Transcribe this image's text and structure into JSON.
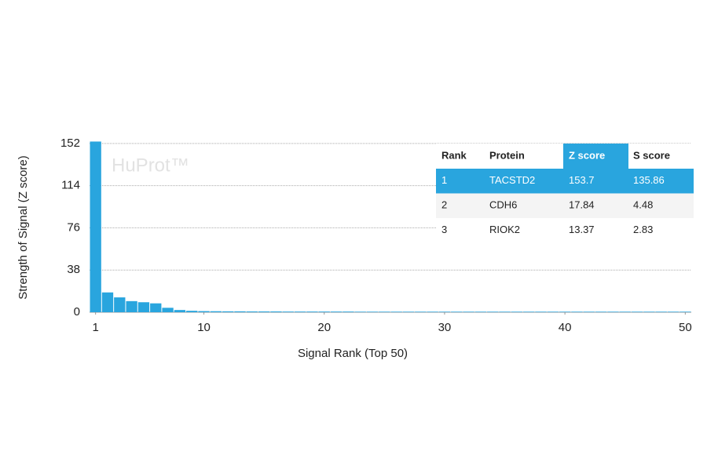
{
  "chart_data": {
    "type": "bar",
    "watermark": "HuProt™",
    "ylabel": "Strength of Signal (Z score)",
    "xlabel": "Signal Rank (Top 50)",
    "color": "#29a5de",
    "x": [
      1,
      2,
      3,
      4,
      5,
      6,
      7,
      8,
      9,
      10,
      11,
      12,
      13,
      14,
      15,
      16,
      17,
      18,
      19,
      20,
      21,
      22,
      23,
      24,
      25,
      26,
      27,
      28,
      29,
      30,
      31,
      32,
      33,
      34,
      35,
      36,
      37,
      38,
      39,
      40,
      41,
      42,
      43,
      44,
      45,
      46,
      47,
      48,
      49,
      50
    ],
    "values": [
      153.7,
      17.84,
      13.37,
      10,
      9,
      8,
      4,
      2,
      1.3,
      1,
      0.9,
      0.8,
      0.8,
      0.7,
      0.7,
      0.7,
      0.6,
      0.6,
      0.6,
      0.6,
      0.6,
      0.6,
      0.5,
      0.5,
      0.5,
      0.5,
      0.5,
      0.5,
      0.5,
      0.5,
      0.5,
      0.5,
      0.5,
      0.5,
      0.5,
      0.5,
      0.5,
      0.5,
      0.5,
      0.5,
      0.5,
      0.5,
      0.5,
      0.5,
      0.5,
      0.5,
      0.5,
      0.5,
      0.5,
      0.5
    ],
    "xlim": [
      0.5,
      50.5
    ],
    "xticks": [
      1,
      10,
      20,
      30,
      40,
      50
    ],
    "ylim": [
      0,
      154
    ],
    "yticks": [
      0,
      38,
      76,
      114,
      152
    ],
    "grid": true,
    "table": {
      "columns": [
        "Rank",
        "Protein",
        "Z score",
        "S score"
      ],
      "rows": [
        {
          "rank": "1",
          "protein": "TACSTD2",
          "s_score": "135.86"
        },
        {
          "rank": "2",
          "protein": "CDH6",
          "s_score": "4.48"
        },
        {
          "rank": "3",
          "protein": "RIOK2",
          "s_score": "2.83"
        }
      ]
    }
  }
}
